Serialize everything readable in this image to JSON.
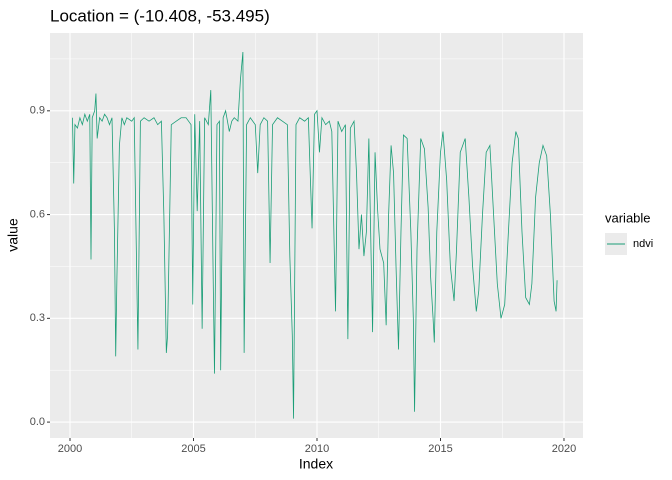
{
  "chart_data": {
    "type": "line",
    "title": "Location = (-10.408, -53.495)",
    "x_label": "Index",
    "y_label": "value",
    "legend_title": "variable",
    "legend_position": "right",
    "grid": true,
    "xlim": [
      1999.19,
      2020.77
    ],
    "ylim": [
      -0.046,
      1.125
    ],
    "xticks": [
      2000,
      2005,
      2010,
      2015,
      2020
    ],
    "yticks": [
      {
        "value": 0,
        "label": "0.0"
      },
      0.3,
      0.6,
      0.9
    ],
    "xminorticks": [
      2002.5,
      2007.5,
      2012.5,
      2017.5
    ],
    "yminorticks": [
      0.15,
      0.45,
      0.75,
      1.05
    ],
    "x": [
      2000.1,
      2000.15,
      2000.2,
      2000.3,
      2000.4,
      2000.5,
      2000.6,
      2000.7,
      2000.8,
      2000.85,
      2000.9,
      2001.0,
      2001.05,
      2001.1,
      2001.2,
      2001.3,
      2001.4,
      2001.5,
      2001.6,
      2001.7,
      2001.8,
      2001.85,
      2001.9,
      2002.0,
      2002.1,
      2002.2,
      2002.3,
      2002.5,
      2002.6,
      2002.75,
      2002.85,
      2003.0,
      2003.2,
      2003.4,
      2003.55,
      2003.7,
      2003.8,
      2003.9,
      2003.95,
      2004.1,
      2004.3,
      2004.5,
      2004.7,
      2004.8,
      2004.9,
      2004.97,
      2005.05,
      2005.15,
      2005.25,
      2005.35,
      2005.45,
      2005.6,
      2005.7,
      2005.8,
      2005.85,
      2005.95,
      2006.05,
      2006.1,
      2006.2,
      2006.3,
      2006.45,
      2006.55,
      2006.65,
      2006.8,
      2006.9,
      2007.0,
      2007.05,
      2007.15,
      2007.3,
      2007.5,
      2007.6,
      2007.7,
      2007.85,
      2008.0,
      2008.1,
      2008.2,
      2008.4,
      2008.6,
      2008.8,
      2008.9,
      2009.0,
      2009.05,
      2009.15,
      2009.3,
      2009.5,
      2009.65,
      2009.8,
      2009.9,
      2010.0,
      2010.1,
      2010.2,
      2010.35,
      2010.5,
      2010.6,
      2010.75,
      2010.85,
      2011.0,
      2011.15,
      2011.25,
      2011.35,
      2011.5,
      2011.6,
      2011.7,
      2011.8,
      2011.9,
      2012.0,
      2012.1,
      2012.25,
      2012.35,
      2012.45,
      2012.55,
      2012.7,
      2012.8,
      2012.9,
      2013.0,
      2013.1,
      2013.2,
      2013.3,
      2013.4,
      2013.5,
      2013.65,
      2013.8,
      2013.9,
      2013.95,
      2014.05,
      2014.2,
      2014.35,
      2014.5,
      2014.6,
      2014.7,
      2014.75,
      2014.85,
      2015.0,
      2015.1,
      2015.25,
      2015.4,
      2015.55,
      2015.65,
      2015.8,
      2016.0,
      2016.15,
      2016.3,
      2016.45,
      2016.55,
      2016.7,
      2016.85,
      2017.0,
      2017.15,
      2017.3,
      2017.45,
      2017.6,
      2017.75,
      2017.9,
      2018.05,
      2018.15,
      2018.3,
      2018.45,
      2018.6,
      2018.7,
      2018.85,
      2019.0,
      2019.15,
      2019.3,
      2019.45,
      2019.6,
      2019.68,
      2019.72
    ],
    "series": [
      {
        "name": "ndvi",
        "color": "#1b9e77",
        "values": [
          0.88,
          0.69,
          0.86,
          0.85,
          0.88,
          0.86,
          0.89,
          0.87,
          0.89,
          0.47,
          0.88,
          0.9,
          0.95,
          0.82,
          0.88,
          0.87,
          0.89,
          0.88,
          0.86,
          0.88,
          0.55,
          0.19,
          0.42,
          0.8,
          0.88,
          0.86,
          0.88,
          0.87,
          0.88,
          0.21,
          0.87,
          0.88,
          0.87,
          0.88,
          0.86,
          0.87,
          0.6,
          0.2,
          0.25,
          0.86,
          0.87,
          0.88,
          0.88,
          0.87,
          0.86,
          0.34,
          0.89,
          0.61,
          0.87,
          0.27,
          0.88,
          0.86,
          0.96,
          0.4,
          0.14,
          0.86,
          0.87,
          0.15,
          0.88,
          0.9,
          0.84,
          0.87,
          0.88,
          0.87,
          0.99,
          1.07,
          0.2,
          0.86,
          0.88,
          0.86,
          0.72,
          0.86,
          0.88,
          0.87,
          0.46,
          0.86,
          0.88,
          0.87,
          0.86,
          0.48,
          0.25,
          0.01,
          0.86,
          0.88,
          0.87,
          0.88,
          0.56,
          0.89,
          0.9,
          0.78,
          0.88,
          0.86,
          0.87,
          0.84,
          0.32,
          0.87,
          0.84,
          0.86,
          0.24,
          0.85,
          0.87,
          0.72,
          0.5,
          0.6,
          0.48,
          0.55,
          0.82,
          0.26,
          0.78,
          0.62,
          0.5,
          0.46,
          0.28,
          0.6,
          0.8,
          0.72,
          0.45,
          0.21,
          0.55,
          0.83,
          0.82,
          0.55,
          0.3,
          0.03,
          0.5,
          0.82,
          0.79,
          0.62,
          0.42,
          0.3,
          0.23,
          0.55,
          0.78,
          0.84,
          0.7,
          0.45,
          0.35,
          0.5,
          0.78,
          0.82,
          0.65,
          0.45,
          0.32,
          0.38,
          0.6,
          0.78,
          0.8,
          0.6,
          0.4,
          0.3,
          0.34,
          0.55,
          0.75,
          0.84,
          0.82,
          0.55,
          0.36,
          0.34,
          0.4,
          0.65,
          0.75,
          0.8,
          0.77,
          0.6,
          0.35,
          0.32,
          0.41
        ]
      }
    ]
  }
}
